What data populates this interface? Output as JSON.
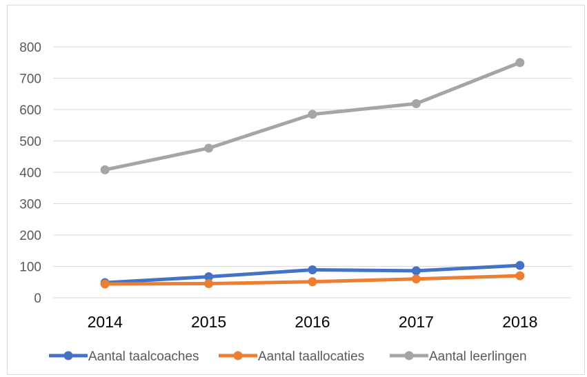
{
  "chart_data": {
    "type": "line",
    "categories": [
      "2014",
      "2015",
      "2016",
      "2017",
      "2018"
    ],
    "ylim": [
      0,
      800
    ],
    "yticks": [
      "0",
      "100",
      "200",
      "300",
      "400",
      "500",
      "600",
      "700",
      "800"
    ],
    "grid": true,
    "legend_position": "bottom",
    "series": [
      {
        "name": "Aantal taalcoaches",
        "color": "#4472c4",
        "values": [
          48,
          67,
          89,
          86,
          103
        ]
      },
      {
        "name": "Aantal taallocaties",
        "color": "#ed7d31",
        "values": [
          44,
          45,
          51,
          60,
          70
        ]
      },
      {
        "name": "Aantal leerlingen",
        "color": "#a5a5a5",
        "values": [
          408,
          477,
          585,
          619,
          750
        ]
      }
    ]
  }
}
